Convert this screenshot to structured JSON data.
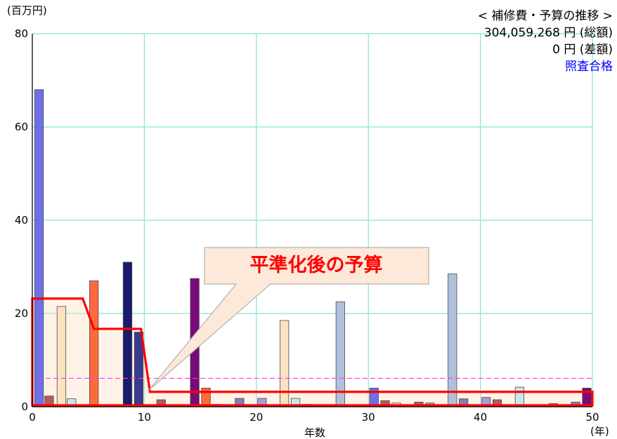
{
  "chart": {
    "y_unit": "(百万円)",
    "x_unit": "(年)",
    "xlabel": "年数",
    "legend_title": "< 補修費・予算の推移 >",
    "total_value": "304,059,268",
    "total_label": "円 (総額)",
    "diff_value": "0",
    "diff_label": "円 (差額)",
    "status": "照査合格",
    "callout": "平準化後の予算",
    "status_color": "#0000ff",
    "callout_color": "#ff0000"
  },
  "chart_data": {
    "type": "bar",
    "xlim": [
      0,
      50
    ],
    "ylim": [
      0,
      80
    ],
    "x_ticks": [
      0,
      10,
      20,
      30,
      40,
      50
    ],
    "y_ticks": [
      0,
      20,
      40,
      60,
      80
    ],
    "grid": true,
    "bars": [
      {
        "x": 0.6,
        "value": 68,
        "color": "#6f6fe8"
      },
      {
        "x": 1.5,
        "value": 2.3,
        "color": "#b85a5a"
      },
      {
        "x": 2.6,
        "value": 21.5,
        "color": "#fde2bf"
      },
      {
        "x": 3.5,
        "value": 1.7,
        "color": "#c7e8e8"
      },
      {
        "x": 5.5,
        "value": 27,
        "color": "#ff6a3d"
      },
      {
        "x": 8.5,
        "value": 31,
        "color": "#1a1a6e"
      },
      {
        "x": 9.5,
        "value": 16,
        "color": "#3a3a8e"
      },
      {
        "x": 11.5,
        "value": 1.5,
        "color": "#b85a5a"
      },
      {
        "x": 13.5,
        "value": 0.4,
        "color": "#c7a0a0"
      },
      {
        "x": 14.5,
        "value": 27.5,
        "color": "#7a0a7a"
      },
      {
        "x": 15.5,
        "value": 4,
        "color": "#ff6a3d"
      },
      {
        "x": 16.5,
        "value": 0.5,
        "color": "#c7a0a0"
      },
      {
        "x": 18.5,
        "value": 1.8,
        "color": "#8a7ab8"
      },
      {
        "x": 20.5,
        "value": 1.8,
        "color": "#a89ce0"
      },
      {
        "x": 22.5,
        "value": 18.5,
        "color": "#fde2bf"
      },
      {
        "x": 23.5,
        "value": 1.8,
        "color": "#c7e8e8"
      },
      {
        "x": 24.5,
        "value": 0.5,
        "color": "#c7a0a0"
      },
      {
        "x": 27.5,
        "value": 22.5,
        "color": "#b0c0dc"
      },
      {
        "x": 30.5,
        "value": 4,
        "color": "#6f6fe8"
      },
      {
        "x": 31.5,
        "value": 1.3,
        "color": "#b85a5a"
      },
      {
        "x": 32.5,
        "value": 0.8,
        "color": "#fde2bf"
      },
      {
        "x": 34.5,
        "value": 1,
        "color": "#b85a5a"
      },
      {
        "x": 35.5,
        "value": 0.8,
        "color": "#c7a0a0"
      },
      {
        "x": 37.5,
        "value": 28.5,
        "color": "#b0c0dc"
      },
      {
        "x": 38.5,
        "value": 1.7,
        "color": "#8a7ab8"
      },
      {
        "x": 40.5,
        "value": 2,
        "color": "#a89ce0"
      },
      {
        "x": 41.5,
        "value": 1.5,
        "color": "#b85a5a"
      },
      {
        "x": 43.5,
        "value": 4.2,
        "color": "#c7e8e8"
      },
      {
        "x": 46.5,
        "value": 0.7,
        "color": "#c7a0a0"
      },
      {
        "x": 48.5,
        "value": 1,
        "color": "#8a7ab8"
      },
      {
        "x": 49.5,
        "value": 4,
        "color": "#7a0a7a"
      }
    ],
    "budget_line": {
      "color": "#ff0000",
      "points": [
        [
          0,
          23.2
        ],
        [
          4.5,
          23.2
        ],
        [
          5.5,
          16.7
        ],
        [
          9.7,
          16.7
        ],
        [
          10.5,
          3.2
        ],
        [
          50,
          3.2
        ],
        [
          50,
          0.3
        ]
      ]
    },
    "reference_line": {
      "color": "#ff33ff",
      "y": 6.1,
      "x_start": 0.5,
      "x_end": 50
    }
  }
}
